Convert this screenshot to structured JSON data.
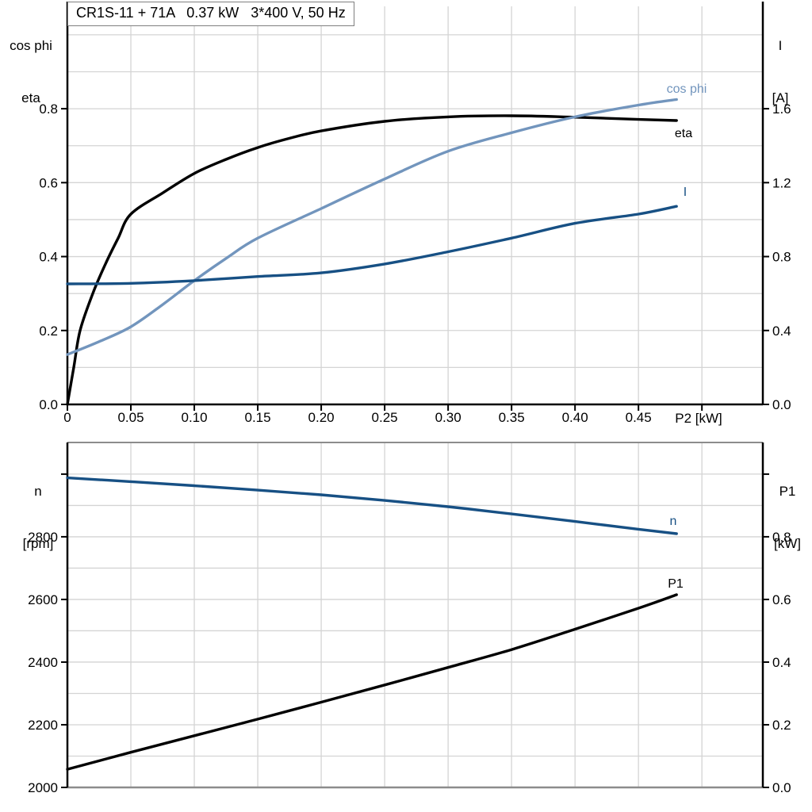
{
  "title": "CR1S-11 + 71A   0.37 kW   3*400 V, 50 Hz",
  "colors": {
    "curve_black": "#000000",
    "curve_dark_blue": "#175084",
    "curve_light_blue": "#7295bd",
    "grid": "#d4d4d4",
    "border_gray": "#8c8c8c",
    "axis_black": "#000000"
  },
  "chart_data": [
    {
      "type": "line",
      "x_axis": {
        "label": "P2 [kW]",
        "range": [
          0,
          0.548
        ],
        "grid": [
          0.05,
          0.1,
          0.15,
          0.2,
          0.25,
          0.3,
          0.35,
          0.4,
          0.45,
          0.5
        ],
        "ticks": [
          {
            "v": 0,
            "t": "0"
          },
          {
            "v": 0.05,
            "t": "0.05"
          },
          {
            "v": 0.1,
            "t": "0.10"
          },
          {
            "v": 0.15,
            "t": "0.15"
          },
          {
            "v": 0.2,
            "t": "0.20"
          },
          {
            "v": 0.25,
            "t": "0.25"
          },
          {
            "v": 0.3,
            "t": "0.30"
          },
          {
            "v": 0.35,
            "t": "0.35"
          },
          {
            "v": 0.4,
            "t": "0.40"
          },
          {
            "v": 0.45,
            "t": "0.45"
          },
          {
            "v": 0.5,
            "t": ""
          }
        ]
      },
      "left_axis": {
        "unit_lines": [
          "cos phi",
          "eta"
        ],
        "range": [
          0,
          1.077
        ],
        "grid": [
          0.1,
          0.2,
          0.3,
          0.4,
          0.5,
          0.6,
          0.7,
          0.8,
          0.9,
          1.0
        ],
        "ticks": [
          {
            "v": 0.0,
            "t": "0.0"
          },
          {
            "v": 0.2,
            "t": "0.2"
          },
          {
            "v": 0.4,
            "t": "0.4"
          },
          {
            "v": 0.6,
            "t": "0.6"
          },
          {
            "v": 0.8,
            "t": "0.8"
          }
        ]
      },
      "right_axis": {
        "unit_lines": [
          "I",
          "[A]"
        ],
        "range": [
          0,
          2.154
        ],
        "ticks": [
          {
            "v": 0.0,
            "t": "0.0"
          },
          {
            "v": 0.4,
            "t": "0.4"
          },
          {
            "v": 0.8,
            "t": "0.8"
          },
          {
            "v": 1.2,
            "t": "1.2"
          },
          {
            "v": 1.6,
            "t": "1.6"
          }
        ]
      },
      "series": [
        {
          "name": "eta",
          "label": "eta",
          "axis": "left",
          "color": "#000000",
          "x": [
            0,
            0.005,
            0.01,
            0.02,
            0.03,
            0.04,
            0.05,
            0.075,
            0.1,
            0.125,
            0.15,
            0.175,
            0.2,
            0.25,
            0.3,
            0.35,
            0.4,
            0.45,
            0.48
          ],
          "y": [
            0,
            0.1,
            0.2,
            0.3,
            0.38,
            0.45,
            0.515,
            0.572,
            0.625,
            0.663,
            0.695,
            0.72,
            0.74,
            0.766,
            0.778,
            0.781,
            0.777,
            0.771,
            0.768
          ]
        },
        {
          "name": "cos_phi",
          "label": "cos phi",
          "axis": "left",
          "color": "#7295bd",
          "x": [
            0,
            0.025,
            0.05,
            0.075,
            0.1,
            0.125,
            0.15,
            0.2,
            0.25,
            0.3,
            0.35,
            0.4,
            0.45,
            0.48
          ],
          "y": [
            0.135,
            0.17,
            0.21,
            0.27,
            0.335,
            0.395,
            0.45,
            0.53,
            0.61,
            0.685,
            0.735,
            0.778,
            0.81,
            0.825
          ]
        },
        {
          "name": "I",
          "label": "I",
          "axis": "right",
          "color": "#175084",
          "x": [
            0,
            0.05,
            0.1,
            0.15,
            0.2,
            0.25,
            0.3,
            0.35,
            0.4,
            0.45,
            0.48
          ],
          "y": [
            0.652,
            0.655,
            0.67,
            0.692,
            0.712,
            0.76,
            0.826,
            0.9,
            0.98,
            1.03,
            1.072
          ]
        }
      ]
    },
    {
      "type": "line",
      "x_axis": {
        "label": "",
        "range": [
          0,
          0.548
        ],
        "grid": [
          0.05,
          0.1,
          0.15,
          0.2,
          0.25,
          0.3,
          0.35,
          0.4,
          0.45,
          0.5
        ],
        "ticks": []
      },
      "left_axis": {
        "unit_lines": [
          "n",
          "[rpm]"
        ],
        "range": [
          2000,
          3101
        ],
        "grid": [
          2100,
          2200,
          2300,
          2400,
          2500,
          2600,
          2700,
          2800,
          2900,
          3000
        ],
        "ticks": [
          {
            "v": 2000,
            "t": "2000"
          },
          {
            "v": 2200,
            "t": "2200"
          },
          {
            "v": 2400,
            "t": "2400"
          },
          {
            "v": 2600,
            "t": "2600"
          },
          {
            "v": 2800,
            "t": "2800"
          },
          {
            "v": 3000,
            "t": ""
          }
        ]
      },
      "right_axis": {
        "unit_lines": [
          "P1",
          "[kW]"
        ],
        "range": [
          0,
          1.101
        ],
        "ticks": [
          {
            "v": 0.0,
            "t": "0.0"
          },
          {
            "v": 0.2,
            "t": "0.2"
          },
          {
            "v": 0.4,
            "t": "0.4"
          },
          {
            "v": 0.6,
            "t": "0.6"
          },
          {
            "v": 0.8,
            "t": "0.8"
          },
          {
            "v": 1.0,
            "t": ""
          }
        ]
      },
      "series": [
        {
          "name": "n",
          "label": "n",
          "axis": "left",
          "color": "#175084",
          "x": [
            0,
            0.05,
            0.1,
            0.15,
            0.2,
            0.25,
            0.3,
            0.35,
            0.4,
            0.45,
            0.48
          ],
          "y": [
            2988,
            2976,
            2963,
            2949,
            2934,
            2916,
            2896,
            2873,
            2849,
            2824,
            2810
          ]
        },
        {
          "name": "P1",
          "label": "P1",
          "axis": "right",
          "color": "#000000",
          "x": [
            0,
            0.05,
            0.1,
            0.15,
            0.2,
            0.25,
            0.3,
            0.35,
            0.4,
            0.45,
            0.48
          ],
          "y": [
            0.058,
            0.112,
            0.165,
            0.218,
            0.272,
            0.327,
            0.383,
            0.44,
            0.505,
            0.572,
            0.615
          ]
        }
      ]
    }
  ]
}
